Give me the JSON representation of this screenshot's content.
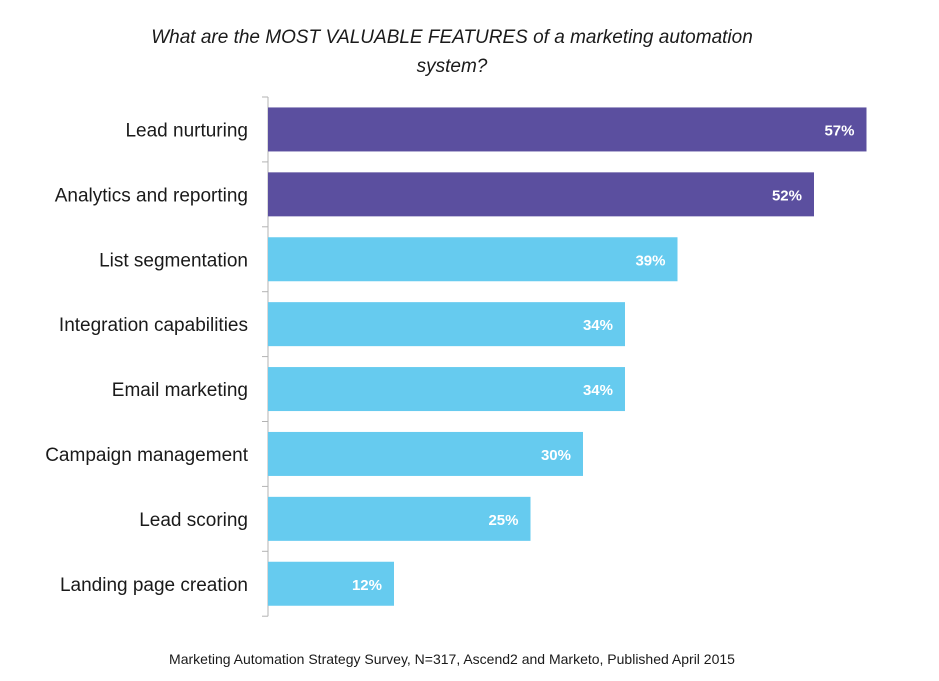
{
  "chart_data": {
    "type": "bar",
    "orientation": "horizontal",
    "title_lines": [
      "What are the MOST VALUABLE FEATURES of a marketing automation",
      "system?"
    ],
    "categories": [
      "Lead nurturing",
      "Analytics and reporting",
      "List segmentation",
      "Integration capabilities",
      "Email marketing",
      "Campaign management",
      "Lead scoring",
      "Landing page creation"
    ],
    "values": [
      57,
      52,
      39,
      34,
      34,
      30,
      25,
      12
    ],
    "value_labels": [
      "57%",
      "52%",
      "39%",
      "34%",
      "34%",
      "30%",
      "25%",
      "12%"
    ],
    "unit": "%",
    "xlim": [
      0,
      60
    ],
    "grid": false,
    "legend": "none",
    "highlight_count": 2,
    "colors": {
      "highlight": "#5b4f9f",
      "default": "#66cbef",
      "axis": "#b3b3b3",
      "text": "#1a1a1a",
      "value_text": "#ffffff"
    },
    "source": "Marketing Automation Strategy Survey, N=317, Ascend2 and Marketo, Published April 2015"
  }
}
